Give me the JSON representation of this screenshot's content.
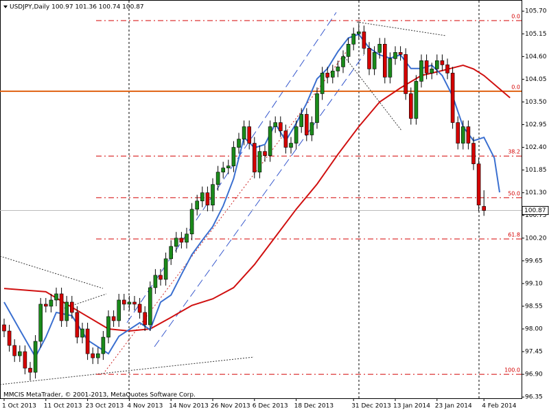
{
  "chart_data": {
    "type": "candlestick",
    "title": "USDJPY,Daily  100.97 101.36 100.74 100.87",
    "footer": "MMCIS MetaTrader, © 2001-2013, MetaQuotes Software Corp.",
    "up_color": "#1a8a1a",
    "down_color": "#d40000",
    "ylim": [
      96.32,
      105.97
    ],
    "yticks": [
      {
        "value": 105.7,
        "label": "105.70"
      },
      105.15,
      {
        "value": 104.6,
        "label": "104.60"
      },
      104.05,
      {
        "value": 103.5,
        "label": "103.50"
      },
      102.95,
      {
        "value": 102.4,
        "label": "102.40"
      },
      101.85,
      {
        "value": 101.3,
        "label": "101.30"
      },
      100.75,
      {
        "value": 100.2,
        "label": "100.20"
      },
      99.65,
      {
        "value": 99.1,
        "label": "99.10"
      },
      98.55,
      {
        "value": 98.0,
        "label": "98.00"
      },
      97.45,
      {
        "value": 96.9,
        "label": "96.90"
      },
      96.35
    ],
    "categories": [
      "1 Oct 2013",
      null,
      null,
      null,
      null,
      null,
      null,
      null,
      "11 Oct 2013",
      null,
      null,
      null,
      null,
      null,
      null,
      null,
      "23 Oct 2013",
      null,
      null,
      null,
      null,
      null,
      null,
      null,
      "4 Nov 2013",
      null,
      null,
      null,
      null,
      null,
      null,
      null,
      "14 Nov 2013",
      null,
      null,
      null,
      null,
      null,
      null,
      null,
      "26 Nov 2013",
      null,
      null,
      null,
      null,
      null,
      null,
      null,
      "6 Dec 2013",
      null,
      null,
      null,
      null,
      null,
      null,
      null,
      "18 Dec 2013",
      null,
      null,
      null,
      null,
      null,
      null,
      null,
      null,
      null,
      null,
      "31 Dec 2013",
      null,
      null,
      null,
      null,
      null,
      null,
      null,
      "13 Jan 2014",
      null,
      null,
      null,
      null,
      null,
      null,
      null,
      "23 Jan 2014",
      null,
      null,
      null,
      null,
      null,
      null,
      null,
      null,
      "4 Feb 2014"
    ],
    "ohlc": [
      [
        98.1,
        98.25,
        97.8,
        97.95
      ],
      [
        97.95,
        98.1,
        97.45,
        97.6
      ],
      [
        97.6,
        97.75,
        97.2,
        97.35
      ],
      [
        97.35,
        97.6,
        97.2,
        97.45
      ],
      [
        97.45,
        97.6,
        96.9,
        97.05
      ],
      [
        97.05,
        97.2,
        96.75,
        96.95
      ],
      [
        96.95,
        97.85,
        96.8,
        97.7
      ],
      [
        97.7,
        98.75,
        97.55,
        98.6
      ],
      [
        98.6,
        98.75,
        98.4,
        98.55
      ],
      [
        98.55,
        98.85,
        98.4,
        98.7
      ],
      [
        98.7,
        99.0,
        98.55,
        98.85
      ],
      [
        98.85,
        99.0,
        98.05,
        98.2
      ],
      [
        98.2,
        98.8,
        98.05,
        98.65
      ],
      [
        98.65,
        98.8,
        98.25,
        98.4
      ],
      [
        98.4,
        98.55,
        97.65,
        97.8
      ],
      [
        97.8,
        98.15,
        97.65,
        98.0
      ],
      [
        98.0,
        98.15,
        97.25,
        97.4
      ],
      [
        97.4,
        97.55,
        97.15,
        97.3
      ],
      [
        97.3,
        97.55,
        97.15,
        97.4
      ],
      [
        97.4,
        97.95,
        97.25,
        97.8
      ],
      [
        97.8,
        98.45,
        97.65,
        98.3
      ],
      [
        98.3,
        98.45,
        98.05,
        98.2
      ],
      [
        98.2,
        98.85,
        98.05,
        98.7
      ],
      [
        98.7,
        98.85,
        98.45,
        98.6
      ],
      [
        98.6,
        98.8,
        98.45,
        98.65
      ],
      [
        98.65,
        98.8,
        98.45,
        98.6
      ],
      [
        98.6,
        98.75,
        98.25,
        98.4
      ],
      [
        98.4,
        98.55,
        97.95,
        98.1
      ],
      [
        98.1,
        99.15,
        97.95,
        99.0
      ],
      [
        99.0,
        99.45,
        98.85,
        99.3
      ],
      [
        99.3,
        99.45,
        99.05,
        99.2
      ],
      [
        99.2,
        99.85,
        99.05,
        99.7
      ],
      [
        99.7,
        100.15,
        99.55,
        100.0
      ],
      [
        100.0,
        100.35,
        99.85,
        100.2
      ],
      [
        100.2,
        100.35,
        99.95,
        100.1
      ],
      [
        100.1,
        100.45,
        99.95,
        100.3
      ],
      [
        100.3,
        101.05,
        100.15,
        100.9
      ],
      [
        100.9,
        101.25,
        100.75,
        101.1
      ],
      [
        101.1,
        101.45,
        100.95,
        101.3
      ],
      [
        101.3,
        101.45,
        100.85,
        101.0
      ],
      [
        101.0,
        101.65,
        100.85,
        101.5
      ],
      [
        101.5,
        101.95,
        101.35,
        101.8
      ],
      [
        101.8,
        102.05,
        101.65,
        101.9
      ],
      [
        101.9,
        102.1,
        101.75,
        101.95
      ],
      [
        101.95,
        102.55,
        101.8,
        102.4
      ],
      [
        102.4,
        102.75,
        102.25,
        102.6
      ],
      [
        102.6,
        103.05,
        102.45,
        102.9
      ],
      [
        102.9,
        103.05,
        102.35,
        102.5
      ],
      [
        102.5,
        102.65,
        101.65,
        101.8
      ],
      [
        101.8,
        102.45,
        101.65,
        102.3
      ],
      [
        102.3,
        102.45,
        102.05,
        102.2
      ],
      [
        102.2,
        103.05,
        102.05,
        102.9
      ],
      [
        102.9,
        103.15,
        102.75,
        103.0
      ],
      [
        103.0,
        103.15,
        102.65,
        102.8
      ],
      [
        102.8,
        102.95,
        102.25,
        102.4
      ],
      [
        102.4,
        102.65,
        102.25,
        102.5
      ],
      [
        102.5,
        103.05,
        102.35,
        102.9
      ],
      [
        102.9,
        103.35,
        102.75,
        103.2
      ],
      [
        103.2,
        103.35,
        102.55,
        102.7
      ],
      [
        102.7,
        103.15,
        102.55,
        103.0
      ],
      [
        103.0,
        103.85,
        102.85,
        103.7
      ],
      [
        103.7,
        104.35,
        103.55,
        104.2
      ],
      [
        104.2,
        104.35,
        103.95,
        104.1
      ],
      [
        104.1,
        104.4,
        103.95,
        104.25
      ],
      [
        104.25,
        104.5,
        104.1,
        104.35
      ],
      [
        104.35,
        104.75,
        104.2,
        104.6
      ],
      [
        104.6,
        105.05,
        104.45,
        104.9
      ],
      [
        104.9,
        105.3,
        104.75,
        105.15
      ],
      [
        105.15,
        105.4,
        105.0,
        105.2
      ],
      [
        105.2,
        105.35,
        104.65,
        104.8
      ],
      [
        104.8,
        104.95,
        104.15,
        104.3
      ],
      [
        104.3,
        104.85,
        104.15,
        104.7
      ],
      [
        104.7,
        105.05,
        104.55,
        104.9
      ],
      [
        104.9,
        105.05,
        103.95,
        104.1
      ],
      [
        104.1,
        104.7,
        103.95,
        104.55
      ],
      [
        104.55,
        104.85,
        104.4,
        104.7
      ],
      [
        104.7,
        104.85,
        104.5,
        104.65
      ],
      [
        104.65,
        104.8,
        103.55,
        103.7
      ],
      [
        103.7,
        103.85,
        102.95,
        103.1
      ],
      [
        103.1,
        104.15,
        102.95,
        104.0
      ],
      [
        104.0,
        104.65,
        103.85,
        104.5
      ],
      [
        104.5,
        104.65,
        104.05,
        104.2
      ],
      [
        104.2,
        104.45,
        104.05,
        104.3
      ],
      [
        104.3,
        104.65,
        104.15,
        104.5
      ],
      [
        104.5,
        104.65,
        104.25,
        104.4
      ],
      [
        104.4,
        104.55,
        104.05,
        104.2
      ],
      [
        104.2,
        104.35,
        102.85,
        103.0
      ],
      [
        103.0,
        103.15,
        102.35,
        102.5
      ],
      [
        102.5,
        103.05,
        102.35,
        102.9
      ],
      [
        102.9,
        103.05,
        102.35,
        102.5
      ],
      [
        102.5,
        102.65,
        101.85,
        102.0
      ],
      [
        102.0,
        102.15,
        100.85,
        101.0
      ],
      [
        100.97,
        101.36,
        100.74,
        100.87
      ]
    ],
    "series": [
      {
        "color": "#d01010",
        "x": [
          0,
          8,
          16,
          20,
          24,
          28,
          32,
          36,
          40,
          44,
          48,
          52,
          56,
          60,
          64,
          68,
          72,
          76,
          80,
          84,
          88,
          90,
          92,
          97
        ],
        "values": [
          98.98,
          98.9,
          98.3,
          98.0,
          97.95,
          98.0,
          98.28,
          98.57,
          98.73,
          99.0,
          99.56,
          100.23,
          100.9,
          101.51,
          102.23,
          102.9,
          103.5,
          103.84,
          104.14,
          104.26,
          104.39,
          104.3,
          104.14,
          103.6
        ]
      },
      {
        "color": "#3a6fd0",
        "x": [
          0,
          3,
          6,
          8,
          10,
          13,
          16,
          20,
          22,
          26,
          28,
          30,
          32,
          34,
          36,
          38,
          40,
          42,
          44,
          46,
          48,
          50,
          52,
          54,
          56,
          58,
          60,
          62,
          64,
          66,
          68,
          70,
          72,
          74,
          76,
          78,
          80,
          82,
          84,
          86,
          88,
          90,
          92,
          94,
          95
        ],
        "values": [
          98.65,
          97.98,
          97.32,
          97.8,
          98.4,
          98.32,
          97.73,
          97.4,
          97.82,
          98.15,
          97.98,
          98.65,
          98.82,
          99.32,
          99.8,
          100.15,
          100.48,
          100.98,
          101.64,
          102.64,
          102.39,
          102.47,
          102.97,
          102.56,
          102.98,
          103.47,
          104.06,
          104.31,
          104.72,
          105.05,
          105.14,
          104.81,
          104.64,
          104.56,
          104.64,
          104.31,
          104.31,
          104.39,
          104.14,
          103.64,
          102.9,
          102.56,
          102.64,
          102.14,
          101.31
        ]
      }
    ],
    "bid": {
      "value": 100.87,
      "label": "100.87"
    },
    "fibo": [
      {
        "value": 105.47,
        "label": "0.0"
      },
      {
        "value": 102.19,
        "label": "38.2"
      },
      {
        "value": 101.18,
        "label": "50.0"
      },
      {
        "value": 100.18,
        "label": "61.8"
      },
      {
        "value": 96.9,
        "label": "100.0"
      }
    ],
    "level": {
      "value": 103.76,
      "label": "0.0"
    }
  }
}
